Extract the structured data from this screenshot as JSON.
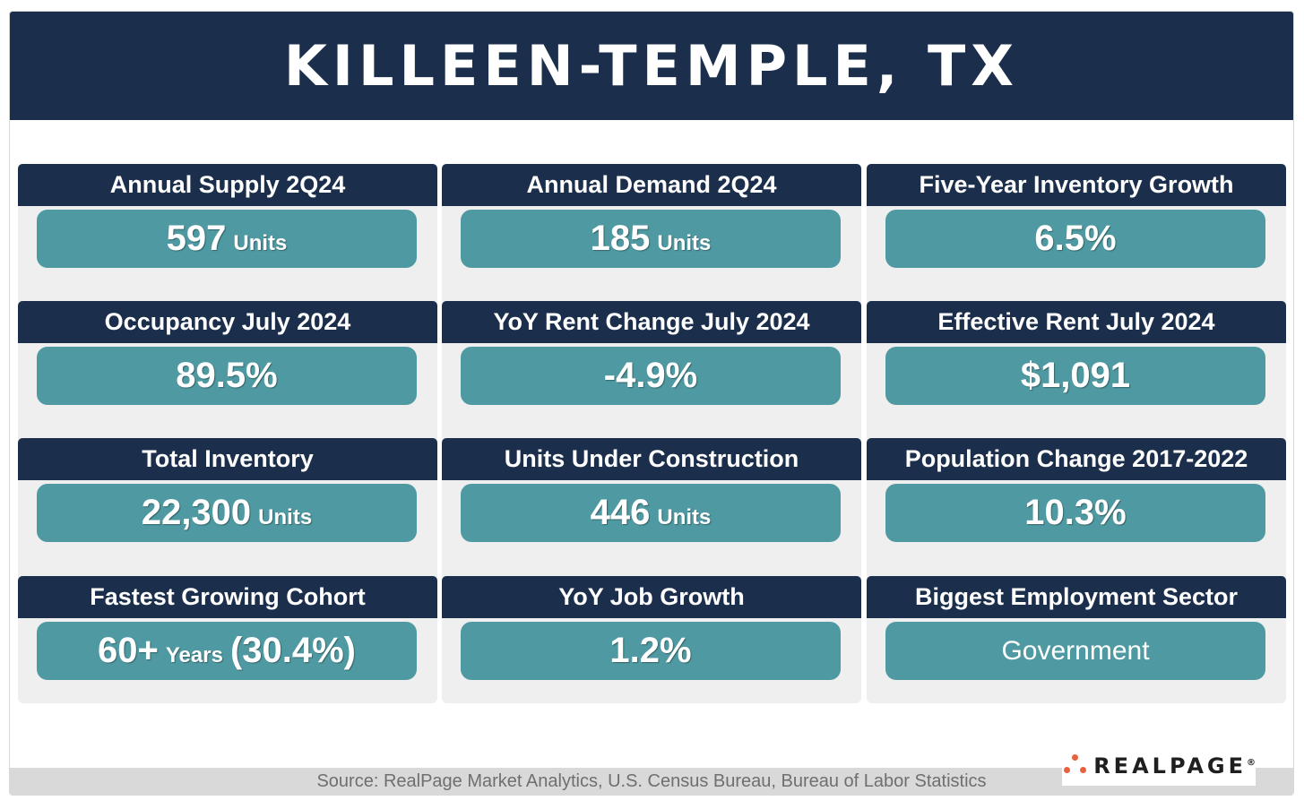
{
  "title": "KILLEEN-TEMPLE, TX",
  "columns": [
    {
      "cards": [
        {
          "label": "Annual Supply 2Q24",
          "value": "597",
          "unit": "Units"
        },
        {
          "label": "Occupancy July 2024",
          "value": "89.5%"
        },
        {
          "label": "Total Inventory",
          "value": "22,300",
          "unit": "Units"
        },
        {
          "label": "Fastest Growing Cohort",
          "value": "60+",
          "unit": "Years",
          "suffix": "(30.4%)"
        }
      ]
    },
    {
      "cards": [
        {
          "label": "Annual Demand 2Q24",
          "value": "185",
          "unit": "Units"
        },
        {
          "label": "YoY Rent Change July 2024",
          "value": "-4.9%"
        },
        {
          "label": "Units Under Construction",
          "value": "446",
          "unit": "Units"
        },
        {
          "label": "YoY Job Growth",
          "value": "1.2%"
        }
      ]
    },
    {
      "cards": [
        {
          "label": "Five-Year Inventory Growth",
          "value": "6.5%"
        },
        {
          "label": "Effective Rent July 2024",
          "value": "$1,091"
        },
        {
          "label": "Population Change 2017-2022",
          "value": "10.3%"
        },
        {
          "label": "Biggest Employment Sector",
          "value": "Government"
        }
      ]
    }
  ],
  "source": "Source: RealPage Market Analytics, U.S. Census Bureau, Bureau of Labor Statistics",
  "logo": {
    "text": "REALPAGE",
    "trademark": "®"
  },
  "colors": {
    "navy": "#1b2f4c",
    "teal": "#4f9aa2",
    "panel": "#efefef",
    "logo_accent": "#e8603c"
  }
}
